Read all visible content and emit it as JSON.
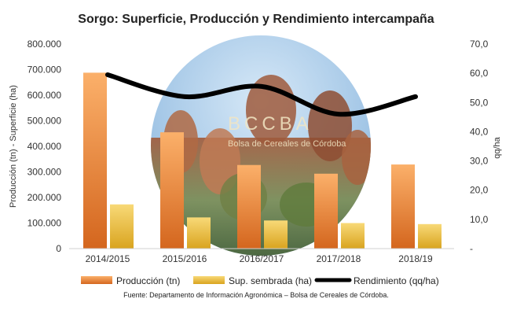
{
  "chart_data": {
    "type": "bar",
    "title": "Sorgo: Superficie, Producción y Rendimiento intercampaña",
    "categories": [
      "2014/2015",
      "2015/2016",
      "2016/2017",
      "2017/2018",
      "2018/19"
    ],
    "series": [
      {
        "name": "Producción (tn)",
        "type": "bar",
        "axis": "left",
        "color": "#ef8a33",
        "values": [
          688000,
          455000,
          327000,
          293000,
          329000
        ]
      },
      {
        "name": "Sup. sembrada (ha)",
        "type": "bar",
        "axis": "left",
        "color": "#f1c540",
        "values": [
          173000,
          122000,
          110000,
          100000,
          96000
        ]
      },
      {
        "name": "Rendimiento (qq/ha)",
        "type": "line",
        "axis": "right",
        "color": "#000000",
        "values": [
          59.5,
          52.0,
          55.5,
          46.0,
          52.0
        ]
      }
    ],
    "ylabel": "Producción (tn) - Superficie (ha)",
    "y2label": "qq/ha",
    "ylim": [
      0,
      800000
    ],
    "y2lim": [
      0,
      70
    ],
    "yticks": [
      "0",
      "100.000",
      "200.000",
      "300.000",
      "400.000",
      "500.000",
      "600.000",
      "700.000",
      "800.000"
    ],
    "y2ticks": [
      "-",
      "10,0",
      "20,0",
      "30,0",
      "40,0",
      "50,0",
      "60,0",
      "70,0"
    ],
    "legend_position": "bottom",
    "grid": false,
    "source": "Fuente: Departamento de Información Agronómica – Bolsa de Cereales de Córdoba.",
    "watermark": {
      "name": "BCCBA",
      "subtitle": "Bolsa de Cereales de Córdoba"
    }
  }
}
